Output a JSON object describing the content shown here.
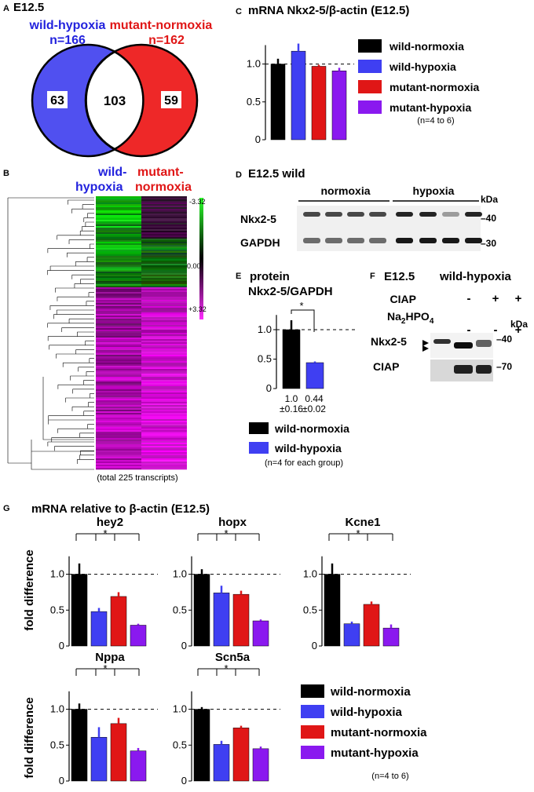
{
  "colors": {
    "wn": "#000000",
    "wh": "#3f3ff2",
    "mn": "#e01616",
    "mh": "#8a19ef",
    "venn_wild": "#5050f0",
    "venn_mut": "#ee2828"
  },
  "panel_a": {
    "letter": "A",
    "title": "E12.5",
    "left_label": "wild-hypoxia",
    "left_n": "n=166",
    "right_label": "mutant-normoxia",
    "right_n": "n=162",
    "left_only": "63",
    "overlap": "103",
    "right_only": "59"
  },
  "panel_b": {
    "letter": "B",
    "col1_line1": "wild-",
    "col1_line2": "hypoxia",
    "col2_line1": "mutant-",
    "col2_line2": "normoxia",
    "scale_top": "-3.32",
    "scale_mid": "0.00",
    "scale_bottom": "+3.32",
    "caption": "(total 225 transcripts)"
  },
  "panel_c": {
    "letter": "C",
    "title_prefix": "mRNA Nkx2-5/",
    "title_beta": "β",
    "title_suffix": "-actin (E12.5)",
    "yticks": [
      "0",
      "0.5",
      "1.0"
    ],
    "legend": [
      "wild-normoxia",
      "wild-hypoxia",
      "mutant-normoxia",
      "mutant-hypoxia"
    ],
    "note": "(n=4 to 6)"
  },
  "panel_d": {
    "letter": "D",
    "title": "E12.5 wild",
    "group1": "normoxia",
    "group2": "hypoxia",
    "kda": "kDa",
    "row1": "Nkx2-5",
    "row2": "GAPDH",
    "mw1": "–40",
    "mw2": "–30"
  },
  "panel_e": {
    "letter": "E",
    "title1": "protein",
    "title2": "Nkx2-5/GAPDH",
    "yticks": [
      "0",
      "0.5",
      "1.0"
    ],
    "star": "*",
    "val1": "1.0",
    "sd1": "±0.16",
    "val2": "0.44",
    "sd2": "±0.02",
    "legend": [
      "wild-normoxia",
      "wild-hypoxia"
    ],
    "note": "(n=4 for each group)"
  },
  "panel_f": {
    "letter": "F",
    "title1": "E12.5",
    "title2": "wild-hypoxia",
    "ciap_label": "CIAP",
    "ciap_signs": [
      "-",
      "+",
      "+"
    ],
    "na_label_a": "Na",
    "na_sub1": "2",
    "na_label_b": "HPO",
    "na_sub2": "4",
    "na_signs": [
      "-",
      "-",
      "+"
    ],
    "kda": "kDa",
    "row1": "Nkx2-5",
    "row2": "CIAP",
    "mw1": "–40",
    "mw2": "–70"
  },
  "panel_g": {
    "letter": "G",
    "title_prefix": "mRNA relative to ",
    "title_beta": "β",
    "title_suffix": "-actin (E12.5)",
    "ylabel": "fold difference",
    "yticks": [
      "0",
      "0.5",
      "1.0"
    ],
    "star": "*",
    "legend": [
      "wild-normoxia",
      "wild-hypoxia",
      "mutant-normoxia",
      "mutant-hypoxia"
    ],
    "note": "(n=4 to 6)"
  },
  "chart_data": [
    {
      "type": "venn",
      "sets": [
        "wild-hypoxia",
        "mutant-normoxia"
      ],
      "sizes": [
        166,
        162
      ],
      "only": [
        63,
        59
      ],
      "overlap": 103
    },
    {
      "type": "bar",
      "title": "mRNA Nkx2-5/β-actin (E12.5)",
      "categories": [
        "wild-normoxia",
        "wild-hypoxia",
        "mutant-normoxia",
        "mutant-hypoxia"
      ],
      "values": [
        1.0,
        1.17,
        0.97,
        0.91
      ],
      "errors": [
        0.07,
        0.1,
        0.02,
        0.04
      ],
      "ylim": [
        0,
        1.4
      ]
    },
    {
      "type": "bar",
      "title": "protein Nkx2-5/GAPDH",
      "categories": [
        "wild-normoxia",
        "wild-hypoxia"
      ],
      "values": [
        1.0,
        0.44
      ],
      "errors": [
        0.16,
        0.02
      ],
      "ylim": [
        0,
        1.4
      ]
    },
    {
      "type": "bar",
      "title": "hey2",
      "ylabel": "fold difference",
      "categories": [
        "wild-normoxia",
        "wild-hypoxia",
        "mutant-normoxia",
        "mutant-hypoxia"
      ],
      "values": [
        1.0,
        0.48,
        0.69,
        0.29
      ],
      "errors": [
        0.15,
        0.05,
        0.06,
        0.02
      ],
      "ylim": [
        0,
        1.4
      ]
    },
    {
      "type": "bar",
      "title": "hopx",
      "categories": [
        "wild-normoxia",
        "wild-hypoxia",
        "mutant-normoxia",
        "mutant-hypoxia"
      ],
      "values": [
        1.0,
        0.74,
        0.72,
        0.35
      ],
      "errors": [
        0.07,
        0.1,
        0.05,
        0.02
      ],
      "ylim": [
        0,
        1.4
      ]
    },
    {
      "type": "bar",
      "title": "Kcne1",
      "categories": [
        "wild-normoxia",
        "wild-hypoxia",
        "mutant-normoxia",
        "mutant-hypoxia"
      ],
      "values": [
        1.0,
        0.31,
        0.58,
        0.25
      ],
      "errors": [
        0.15,
        0.03,
        0.04,
        0.05
      ],
      "ylim": [
        0,
        1.4
      ]
    },
    {
      "type": "bar",
      "title": "Nppa",
      "ylabel": "fold difference",
      "categories": [
        "wild-normoxia",
        "wild-hypoxia",
        "mutant-normoxia",
        "mutant-hypoxia"
      ],
      "values": [
        1.0,
        0.61,
        0.8,
        0.42
      ],
      "errors": [
        0.08,
        0.14,
        0.08,
        0.04
      ],
      "ylim": [
        0,
        1.4
      ]
    },
    {
      "type": "bar",
      "title": "Scn5a",
      "categories": [
        "wild-normoxia",
        "wild-hypoxia",
        "mutant-normoxia",
        "mutant-hypoxia"
      ],
      "values": [
        1.0,
        0.51,
        0.74,
        0.45
      ],
      "errors": [
        0.03,
        0.05,
        0.03,
        0.03
      ],
      "ylim": [
        0,
        1.4
      ]
    }
  ]
}
